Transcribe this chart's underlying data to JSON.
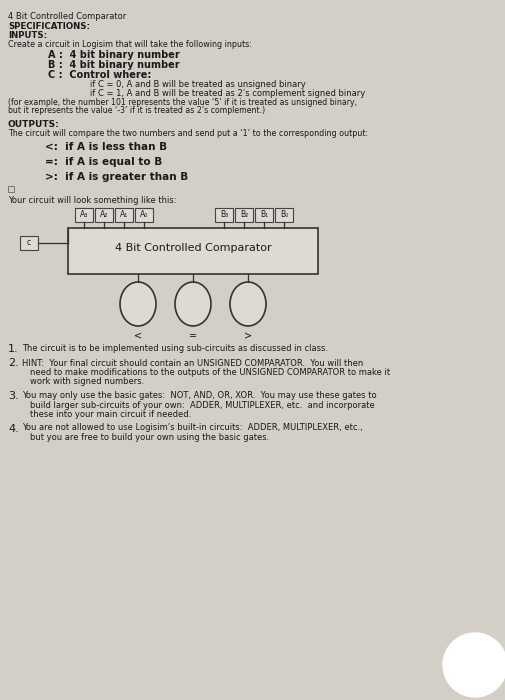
{
  "bg_color": "#d3cec6",
  "title_line": "4 Bit Controlled Comparator",
  "spec_bold": "SPECIFICATIONS:",
  "inputs_bold": "INPUTS:",
  "create_text": "Create a circuit in Logisim that will take the following inputs:",
  "A_label": "A :  4 bit binary number",
  "B_label": "B :  4 bit binary number",
  "C_label": "C :  Control where:",
  "ifC0": "if C = 0, A and B will be treated as unsigned binary",
  "ifC1": "if C = 1, A and B will be treated as 2’s complement signed binary",
  "example_text": "(for example, the number 101 represents the value ‘5’ if it is treated as unsigned binary,",
  "example_text2": "but it represents the value ‘-3’ if it is treated as 2’s complement.)",
  "outputs_bold": "OUTPUTS:",
  "output_desc": "The circuit will compare the two numbers and send put a ‘1’ to the corresponding output:",
  "less_than": "<:  if A is less than B",
  "equal": "=:  if A is equal to B",
  "greater": ">:  if A is greater than B",
  "circuit_text": "Your circuit will look something like this:",
  "a_labels": [
    "A₃",
    "A₂",
    "A₁",
    "A₀"
  ],
  "b_labels": [
    "B₃",
    "B₂",
    "B₁",
    "B₀"
  ],
  "c_label": "c",
  "box_label": "4 Bit Controlled Comparator",
  "out_labels": [
    "<",
    "=",
    ">"
  ],
  "hint1": "The circuit is to be implemented using sub-circuits as discussed in class.",
  "hint2a": "HINT:  Your final circuit should contain an UNSIGNED COMPARATOR.  You will then",
  "hint2b": "need to make modifications to the outputs of the UNSIGNED COMPARATOR to make it",
  "hint2c": "work with signed numbers.",
  "hint3a": "You may only use the basic gates:  NOT, AND, OR, XOR.  You may use these gates to",
  "hint3b": "build larger sub-circuits of your own:  ADDER, MULTIPLEXER, etc.  and incorporate",
  "hint3c": "these into your main circuit if needed.",
  "hint4a": "You are not allowed to use Logisim’s built-in circuits:  ADDER, MULTIPLEXER, etc.,",
  "hint4b": "but you are free to build your own using the basic gates."
}
